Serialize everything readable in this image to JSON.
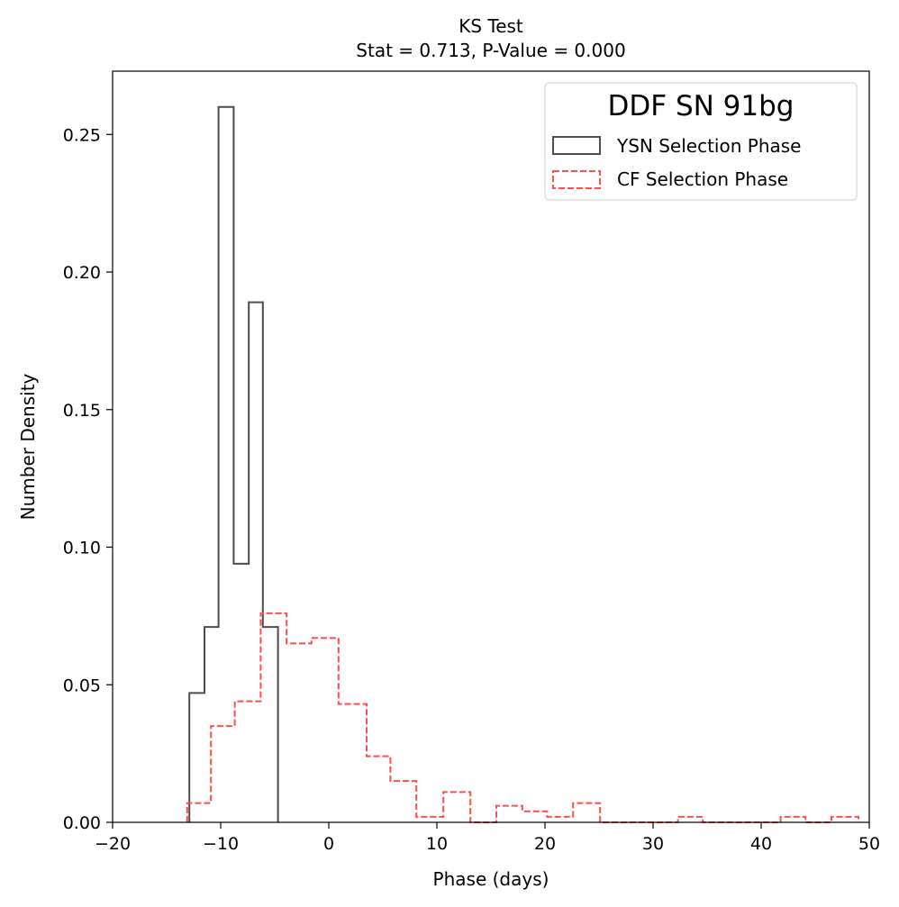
{
  "chart_data": {
    "type": "histogram",
    "title": "KS Test",
    "subtitle": "Stat = 0.713, P-Value = 0.000",
    "xlabel": "Phase (days)",
    "ylabel": "Number Density",
    "xlim": [
      -20,
      50
    ],
    "ylim": [
      0,
      0.273
    ],
    "xticks": [
      -20,
      -10,
      0,
      10,
      20,
      30,
      40,
      50
    ],
    "xtick_labels": [
      "−20",
      "−10",
      "0",
      "10",
      "20",
      "30",
      "40",
      "50"
    ],
    "yticks": [
      0.0,
      0.05,
      0.1,
      0.15,
      0.2,
      0.25
    ],
    "ytick_labels": [
      "0.00",
      "0.05",
      "0.10",
      "0.15",
      "0.20",
      "0.25"
    ],
    "grid": false,
    "legend": {
      "title": "DDF SN 91bg",
      "placement": "upper-right"
    },
    "series": [
      {
        "name": "YSN Selection Phase",
        "style": "solid",
        "color": "#4d4d4d",
        "edges": [
          -12.9,
          -11.5,
          -10.2,
          -8.8,
          -7.4,
          -6.1,
          -4.7
        ],
        "values": [
          0.047,
          0.071,
          0.26,
          0.094,
          0.189,
          0.071
        ]
      },
      {
        "name": "CF Selection Phase",
        "style": "dashed",
        "color": "#ff4d4d",
        "edges": [
          -13.1,
          -11.2,
          -10.9,
          -8.7,
          -6.3,
          -3.9,
          -1.6,
          0.9,
          3.5,
          5.7,
          8.1,
          10.6,
          13.1,
          15.5,
          17.9,
          20.2,
          22.6,
          25.1,
          27.5,
          29.9,
          32.3,
          34.6,
          37.0,
          39.4,
          41.8,
          44.1,
          46.5,
          49.0
        ],
        "values": [
          0.007,
          0.007,
          0.035,
          0.044,
          0.076,
          0.065,
          0.067,
          0.043,
          0.024,
          0.015,
          0.002,
          0.011,
          0.0,
          0.006,
          0.004,
          0.002,
          0.007,
          0.0,
          0.0,
          0.0,
          0.002,
          0.0,
          0.0,
          0.0,
          0.002,
          0.0,
          0.002
        ]
      }
    ]
  }
}
